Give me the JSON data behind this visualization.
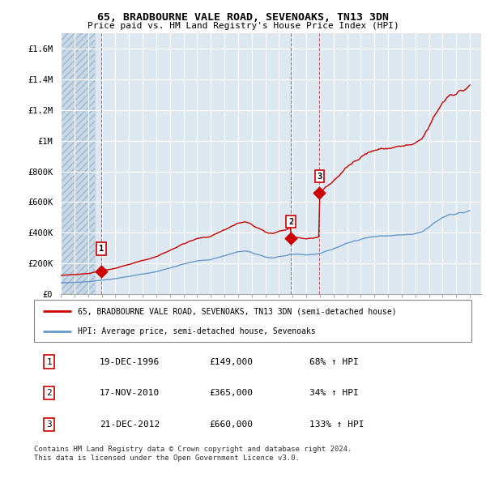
{
  "title": "65, BRADBOURNE VALE ROAD, SEVENOAKS, TN13 3DN",
  "subtitle": "Price paid vs. HM Land Registry's House Price Index (HPI)",
  "ylim": [
    0,
    1700000
  ],
  "yticks": [
    0,
    200000,
    400000,
    600000,
    800000,
    1000000,
    1200000,
    1400000,
    1600000
  ],
  "ytick_labels": [
    "£0",
    "£200K",
    "£400K",
    "£600K",
    "£800K",
    "£1M",
    "£1.2M",
    "£1.4M",
    "£1.6M"
  ],
  "sales": [
    {
      "date_num": 1996.96,
      "price": 149000,
      "label": "1"
    },
    {
      "date_num": 2010.88,
      "price": 365000,
      "label": "2"
    },
    {
      "date_num": 2012.97,
      "price": 660000,
      "label": "3"
    }
  ],
  "sale_table": [
    [
      "1",
      "19-DEC-1996",
      "£149,000",
      "68% ↑ HPI"
    ],
    [
      "2",
      "17-NOV-2010",
      "£365,000",
      "34% ↑ HPI"
    ],
    [
      "3",
      "21-DEC-2012",
      "£660,000",
      "133% ↑ HPI"
    ]
  ],
  "legend_entries": [
    "65, BRADBOURNE VALE ROAD, SEVENOAKS, TN13 3DN (semi-detached house)",
    "HPI: Average price, semi-detached house, Sevenoaks"
  ],
  "footer": [
    "Contains HM Land Registry data © Crown copyright and database right 2024.",
    "This data is licensed under the Open Government Licence v3.0."
  ],
  "red_color": "#cc0000",
  "blue_color": "#6699cc",
  "background_color": "#ffffff",
  "plot_bg_color": "#dde8f0",
  "grid_color": "#ffffff",
  "hatch_fill": "#c8d8e8"
}
